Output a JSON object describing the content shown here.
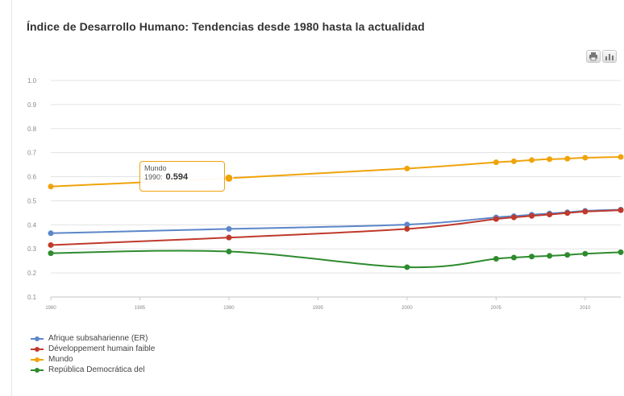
{
  "title": "Índice de Desarrollo Humano: Tendencias desde 1980 hasta la actualidad",
  "toolbar": {
    "buttons": [
      "print-icon",
      "export-chart-icon"
    ]
  },
  "tooltip": {
    "series": "Mundo",
    "year": "1990:",
    "value": "0.594"
  },
  "colors": {
    "blue": "#5b86c8",
    "red": "#c0392b",
    "orange": "#f0a30a",
    "green": "#2e8b2e"
  },
  "chart_data": {
    "type": "line",
    "title": "Índice de Desarrollo Humano: Tendencias desde 1980 hasta la actualidad",
    "xlabel": "",
    "ylabel": "",
    "ylim": [
      0.1,
      1.0
    ],
    "xlim": [
      1980,
      2012
    ],
    "yticks": [
      "0.1",
      "0.2",
      "0.3",
      "0.4",
      "0.5",
      "0.6",
      "0.7",
      "0.8",
      "0.9",
      "1.0"
    ],
    "xticks": [
      {
        "v": 1980,
        "label": "1980"
      },
      {
        "v": 1985,
        "label": "1985"
      },
      {
        "v": 1990,
        "label": "1990"
      },
      {
        "v": 1995,
        "label": "1995"
      },
      {
        "v": 2000,
        "label": "2000"
      },
      {
        "v": 2005,
        "label": "2005"
      },
      {
        "v": 2010,
        "label": "2010"
      }
    ],
    "grid": true,
    "legend": "bottom-left",
    "series": [
      {
        "name": "Afrique subsaharienne (ER)",
        "color": "#5b86c8",
        "points": [
          [
            1980,
            0.365
          ],
          [
            1990,
            0.383
          ],
          [
            2000,
            0.401
          ],
          [
            2005,
            0.431
          ],
          [
            2006,
            0.436
          ],
          [
            2007,
            0.442
          ],
          [
            2008,
            0.447
          ],
          [
            2009,
            0.452
          ],
          [
            2010,
            0.458
          ],
          [
            2012,
            0.463
          ]
        ]
      },
      {
        "name": "Développement humain faible",
        "color": "#c0392b",
        "points": [
          [
            1980,
            0.316
          ],
          [
            1990,
            0.347
          ],
          [
            2000,
            0.383
          ],
          [
            2005,
            0.424
          ],
          [
            2006,
            0.431
          ],
          [
            2007,
            0.437
          ],
          [
            2008,
            0.443
          ],
          [
            2009,
            0.449
          ],
          [
            2010,
            0.455
          ],
          [
            2012,
            0.461
          ]
        ]
      },
      {
        "name": "Mundo",
        "color": "#f0a30a",
        "points": [
          [
            1980,
            0.559
          ],
          [
            1990,
            0.594
          ],
          [
            2000,
            0.634
          ],
          [
            2005,
            0.66
          ],
          [
            2006,
            0.664
          ],
          [
            2007,
            0.669
          ],
          [
            2008,
            0.673
          ],
          [
            2009,
            0.675
          ],
          [
            2010,
            0.679
          ],
          [
            2012,
            0.682
          ]
        ]
      },
      {
        "name": "República Democrática del",
        "color": "#2e8b2e",
        "points": [
          [
            1980,
            0.282
          ],
          [
            1990,
            0.289
          ],
          [
            2000,
            0.224
          ],
          [
            2005,
            0.259
          ],
          [
            2006,
            0.264
          ],
          [
            2007,
            0.268
          ],
          [
            2008,
            0.271
          ],
          [
            2009,
            0.275
          ],
          [
            2010,
            0.28
          ],
          [
            2012,
            0.286
          ]
        ]
      }
    ]
  }
}
